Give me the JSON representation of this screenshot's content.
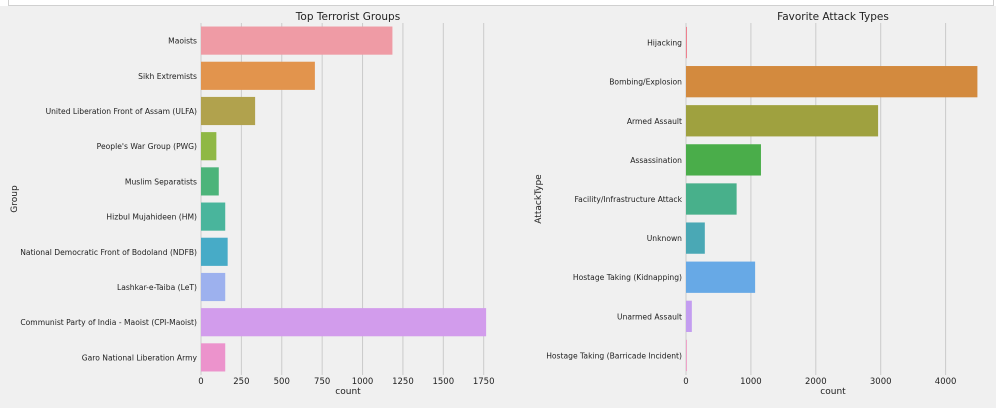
{
  "figure": {
    "background": "#f0f0f0",
    "plot_background": "#f0f0f0",
    "grid_color": "#cbcbcb"
  },
  "chart_data": [
    {
      "type": "bar",
      "orientation": "horizontal",
      "title": "Top Terrorist Groups",
      "xlabel": "count",
      "ylabel": "Group",
      "xlim": [
        0,
        1820
      ],
      "xticks": [
        0,
        250,
        500,
        750,
        1000,
        1250,
        1500,
        1750
      ],
      "grid": true,
      "categories": [
        "Maoists",
        "Sikh Extremists",
        "United Liberation Front of Assam (ULFA)",
        "People's War Group (PWG)",
        "Muslim Separatists",
        "Hizbul Mujahideen (HM)",
        "National Democratic Front of Bodoland (NDFB)",
        "Lashkar-e-Taiba (LeT)",
        "Communist Party of India - Maoist (CPI-Maoist)",
        "Garo National Liberation Army"
      ],
      "values": [
        1185,
        705,
        335,
        95,
        110,
        150,
        165,
        150,
        1765,
        150
      ],
      "colors": [
        "#ef9ba5",
        "#e2944d",
        "#b1a24d",
        "#8fb845",
        "#4cb47a",
        "#49b59c",
        "#47abc7",
        "#9db1ee",
        "#d29cec",
        "#ec93cc"
      ]
    },
    {
      "type": "bar",
      "orientation": "horizontal",
      "title": "Favorite Attack Types",
      "xlabel": "count",
      "ylabel": "AttackType",
      "xlim": [
        0,
        4530
      ],
      "xticks": [
        0,
        1000,
        2000,
        3000,
        4000
      ],
      "grid": true,
      "categories": [
        "Hijacking",
        "Bombing/Explosion",
        "Armed Assault",
        "Assassination",
        "Facility/Infrastructure Attack",
        "Unknown",
        "Hostage Taking (Kidnapping)",
        "Unarmed Assault",
        "Hostage Taking (Barricade Incident)"
      ],
      "values": [
        15,
        4490,
        2960,
        1155,
        780,
        290,
        1065,
        90,
        5
      ],
      "colors": [
        "#ef7d8c",
        "#d38a3e",
        "#9fa13f",
        "#4aad4a",
        "#48b08b",
        "#4aa8b5",
        "#67a9e6",
        "#c39df0",
        "#ef8fbe"
      ]
    }
  ]
}
